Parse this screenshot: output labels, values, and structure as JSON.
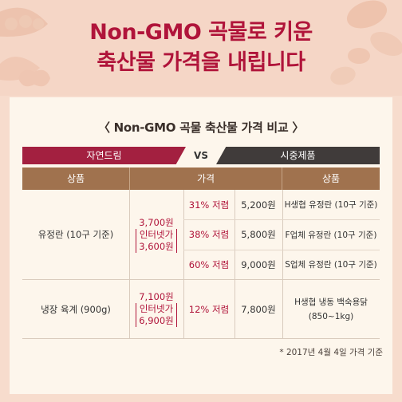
{
  "header": {
    "title_line1": "Non-GMO 곡물로 키운",
    "title_line2": "축산물 가격을 내립니다"
  },
  "colors": {
    "accent": "#b0143a",
    "brand_bar": "#a32040",
    "competitor_bar": "#403b3a",
    "table_header": "#a0724e",
    "background": "#f7dccd",
    "card": "#fdf6ec"
  },
  "icons": [
    "peas-icon",
    "seeds-icon",
    "peanut-icon"
  ],
  "table": {
    "subtitle": "〈 Non-GMO 곡물 축산물 가격 비교 〉",
    "brand": "자연드림",
    "vs": "VS",
    "competitor": "시중제품",
    "headers": {
      "product": "상품",
      "price": "가격",
      "competitor_product": "상품"
    },
    "rows": [
      {
        "product": "유정란 (10구 기준)",
        "price": "3,700원",
        "online_label": "인터넷가",
        "online_price": "3,600원",
        "comparisons": [
          {
            "discount": "31% 저렴",
            "price": "5,200원",
            "product": "H생협 유정란 (10구 기준)"
          },
          {
            "discount": "38% 저렴",
            "price": "5,800원",
            "product": "F업체 유정란 (10구 기준)"
          },
          {
            "discount": "60% 저렴",
            "price": "9,000원",
            "product": "S업체 유정란 (10구 기준)"
          }
        ]
      },
      {
        "product": "냉장 육계 (900g)",
        "price": "7,100원",
        "online_label": "인터넷가",
        "online_price": "6,900원",
        "comparisons": [
          {
            "discount": "12% 저렴",
            "price": "7,800원",
            "product_line1": "H생협 냉동 백숙용닭",
            "product_line2": "(850~1kg)"
          }
        ]
      }
    ],
    "note": "* 2017년 4월 4일 가격 기준"
  }
}
